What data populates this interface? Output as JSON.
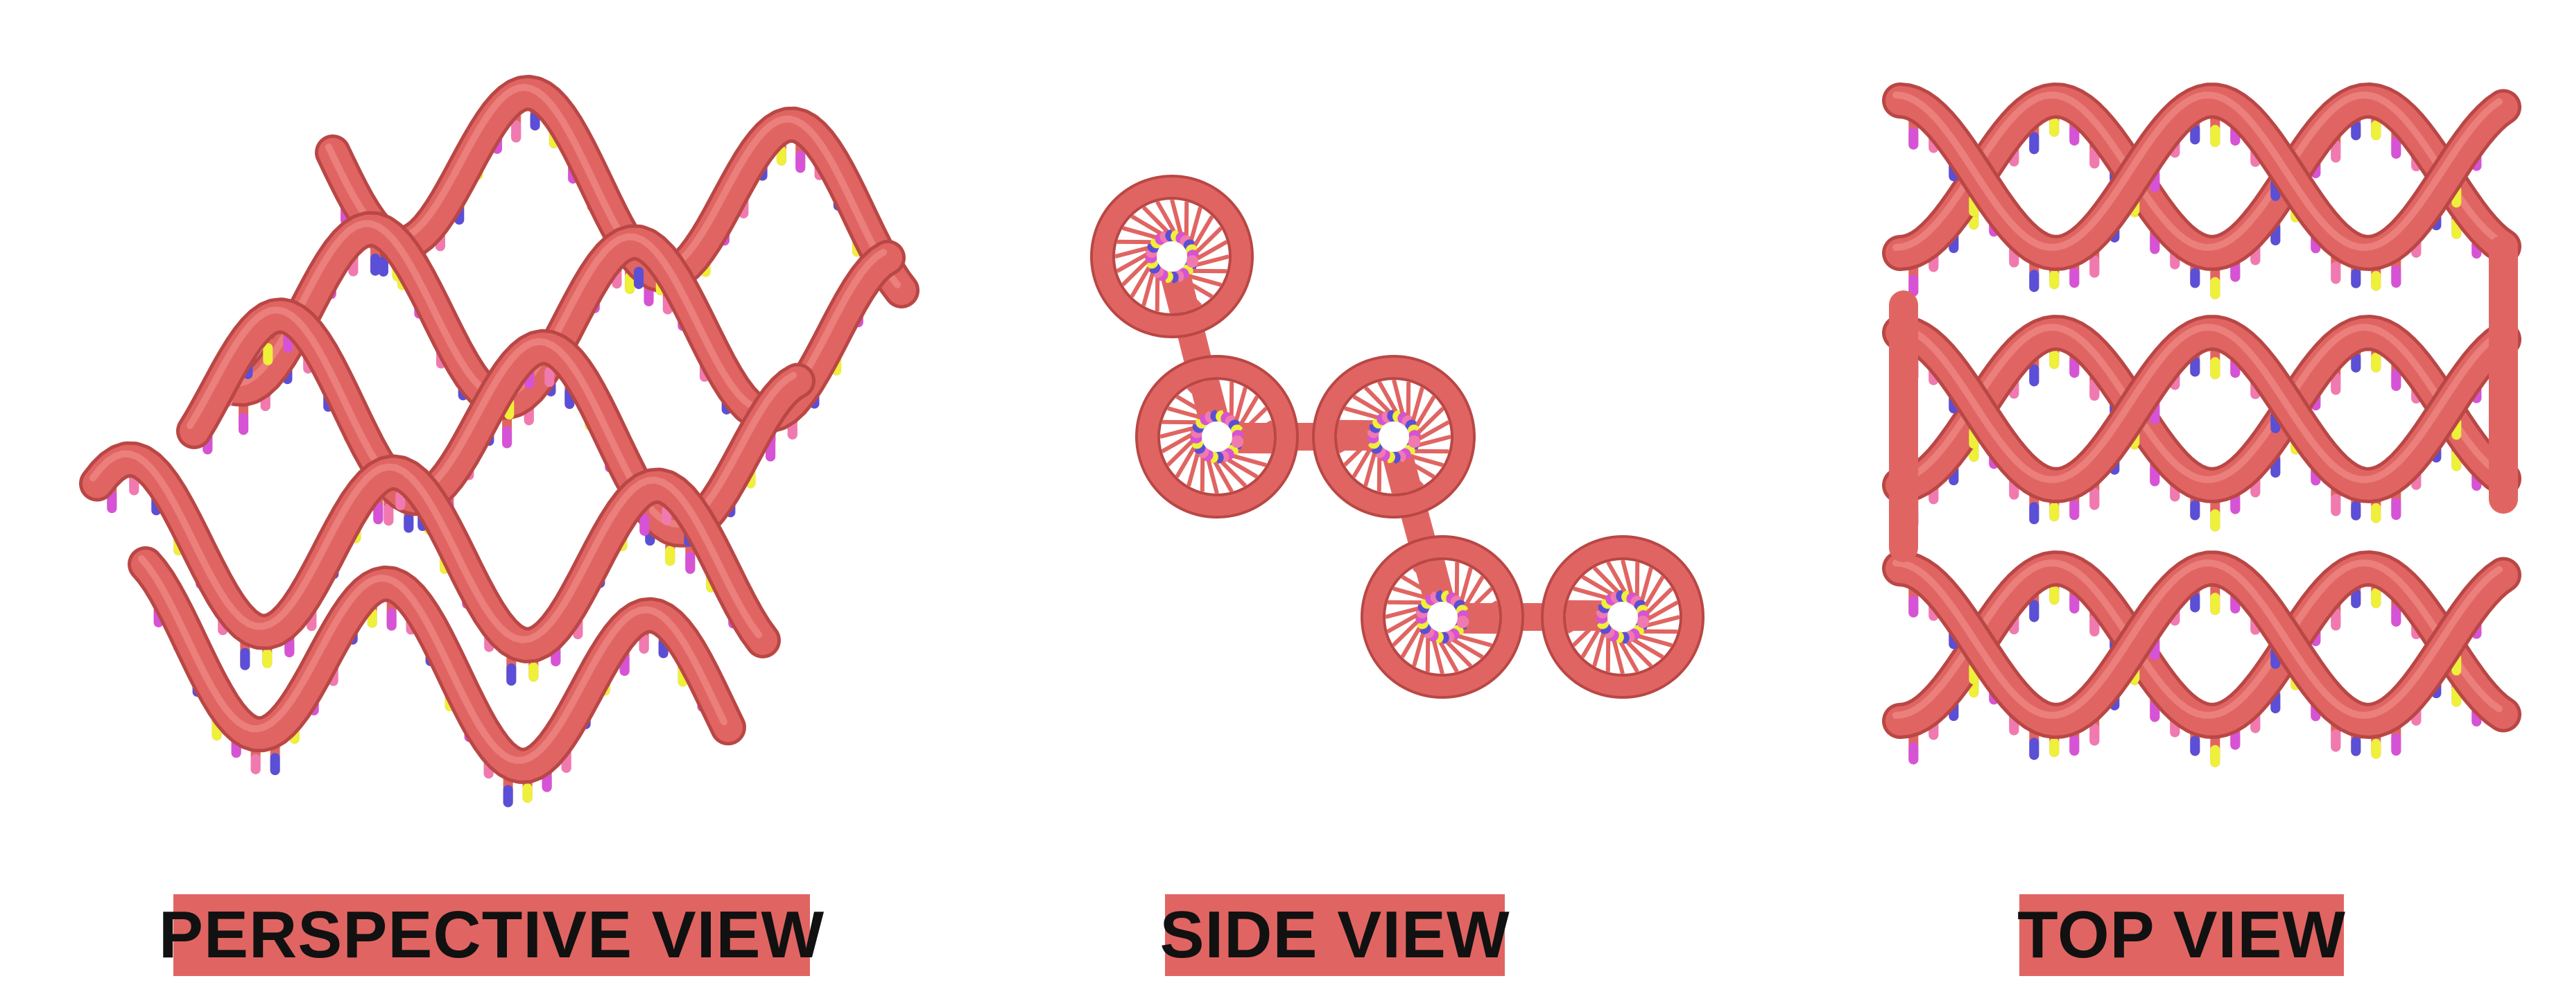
{
  "colors": {
    "backbone": "#e06562",
    "backbone_dark": "#b94745",
    "backbone_light": "#f08a86",
    "label_bg": "#e06562",
    "label_text": "#111111",
    "base_blue": "#5a4fd6",
    "base_yellow": "#eef03a",
    "base_magenta": "#d653d6",
    "base_pink": "#f07ab0"
  },
  "panels": {
    "perspective": {
      "label": "PERSPECTIVE VIEW"
    },
    "side": {
      "label": "SIDE VIEW"
    },
    "top": {
      "label": "TOP VIEW"
    }
  }
}
